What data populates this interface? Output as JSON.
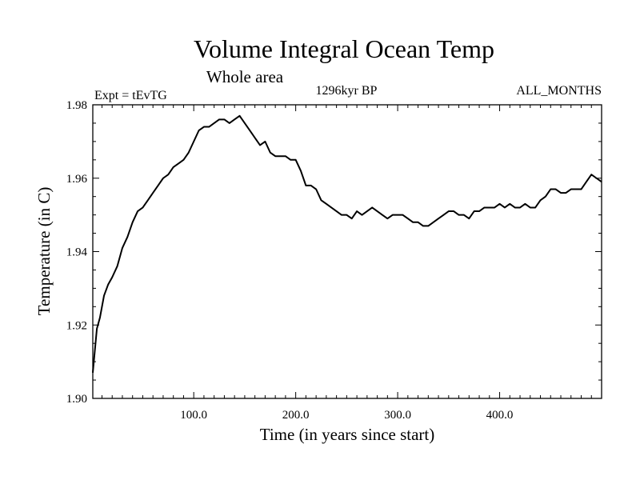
{
  "chart_data": {
    "type": "line",
    "title": "Volume Integral Ocean Temp",
    "subtitle": "Whole area",
    "experiment": "Expt = tEvTG",
    "period": "1296kyr BP",
    "months": "ALL_MONTHS",
    "xlabel": "Time (in years since start)",
    "ylabel": "Temperature (in C)",
    "xlim": [
      1,
      500
    ],
    "ylim": [
      1.9,
      1.98
    ],
    "x_ticks": [
      100,
      200,
      300,
      400
    ],
    "x_tick_labels": [
      "100.0",
      "200.0",
      "300.0",
      "400.0"
    ],
    "y_ticks": [
      1.9,
      1.92,
      1.94,
      1.96,
      1.98
    ],
    "y_tick_labels": [
      "1.90",
      "1.92",
      "1.94",
      "1.96",
      "1.98"
    ],
    "grid": false,
    "series": [
      {
        "name": "Volume Integral Ocean Temp",
        "color": "#000000",
        "x": [
          1,
          3,
          5,
          8,
          12,
          16,
          20,
          25,
          30,
          35,
          40,
          45,
          50,
          55,
          60,
          65,
          70,
          75,
          80,
          85,
          90,
          95,
          100,
          105,
          110,
          115,
          120,
          125,
          130,
          135,
          140,
          145,
          150,
          155,
          160,
          165,
          170,
          175,
          180,
          185,
          190,
          195,
          200,
          205,
          210,
          215,
          220,
          225,
          230,
          235,
          240,
          245,
          250,
          255,
          260,
          265,
          270,
          275,
          280,
          285,
          290,
          295,
          300,
          305,
          310,
          315,
          320,
          325,
          330,
          335,
          340,
          345,
          350,
          355,
          360,
          365,
          370,
          375,
          380,
          385,
          390,
          395,
          400,
          405,
          410,
          415,
          420,
          425,
          430,
          435,
          440,
          445,
          450,
          455,
          460,
          465,
          470,
          475,
          480,
          485,
          490,
          495,
          500
        ],
        "y": [
          1.907,
          1.913,
          1.919,
          1.922,
          1.928,
          1.931,
          1.933,
          1.936,
          1.941,
          1.944,
          1.948,
          1.951,
          1.952,
          1.954,
          1.956,
          1.958,
          1.96,
          1.961,
          1.963,
          1.964,
          1.965,
          1.967,
          1.97,
          1.973,
          1.974,
          1.974,
          1.975,
          1.976,
          1.976,
          1.975,
          1.976,
          1.977,
          1.975,
          1.973,
          1.971,
          1.969,
          1.97,
          1.967,
          1.966,
          1.966,
          1.966,
          1.965,
          1.965,
          1.962,
          1.958,
          1.958,
          1.957,
          1.954,
          1.953,
          1.952,
          1.951,
          1.95,
          1.95,
          1.949,
          1.951,
          1.95,
          1.951,
          1.952,
          1.951,
          1.95,
          1.949,
          1.95,
          1.95,
          1.95,
          1.949,
          1.948,
          1.948,
          1.947,
          1.947,
          1.948,
          1.949,
          1.95,
          1.951,
          1.951,
          1.95,
          1.95,
          1.949,
          1.951,
          1.951,
          1.952,
          1.952,
          1.952,
          1.953,
          1.952,
          1.953,
          1.952,
          1.952,
          1.953,
          1.952,
          1.952,
          1.954,
          1.955,
          1.957,
          1.957,
          1.956,
          1.956,
          1.957,
          1.957,
          1.957,
          1.959,
          1.961,
          1.96,
          1.959
        ]
      }
    ]
  }
}
